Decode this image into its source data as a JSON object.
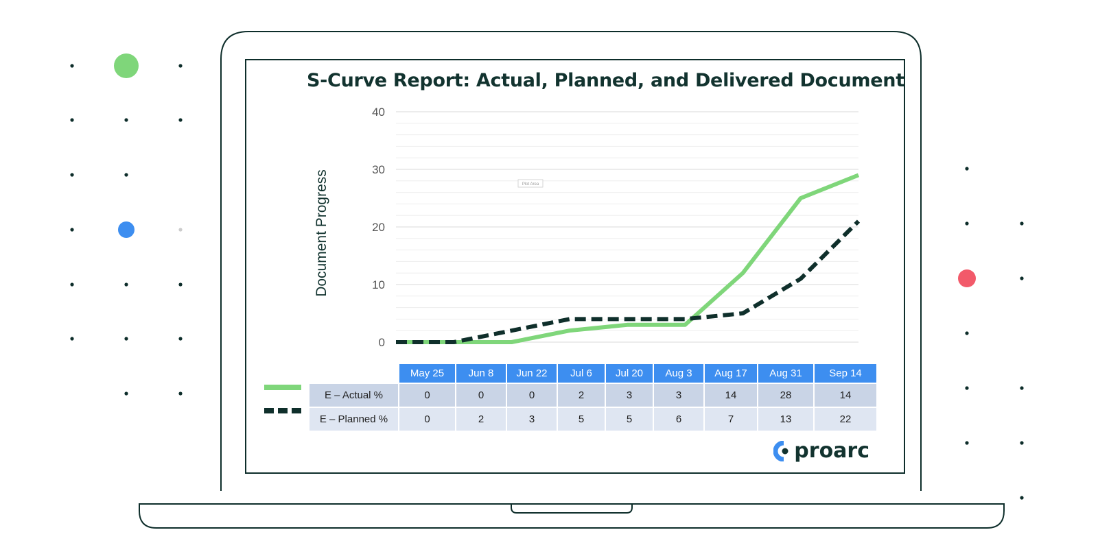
{
  "chart_data": {
    "type": "line",
    "title": "S-Curve Report: Actual, Planned, and Delivered Documents",
    "ylabel": "Document Progress",
    "xlabel": "",
    "ylim": [
      0,
      40
    ],
    "yticks": [
      0,
      10,
      20,
      30,
      40
    ],
    "grid": true,
    "categories": [
      "May 25",
      "Jun 8",
      "Jun 22",
      "Jul 6",
      "Jul 20",
      "Aug 3",
      "Aug 17",
      "Aug 31",
      "Sep 14"
    ],
    "series": [
      {
        "name": "E – Actual %",
        "color": "#7fd67a",
        "style": "solid",
        "values": [
          0,
          0,
          0,
          2,
          3,
          3,
          12,
          25,
          29
        ],
        "table_values": [
          "0",
          "0",
          "0",
          "2",
          "3",
          "3",
          "14",
          "28",
          "14"
        ]
      },
      {
        "name": "E – Planned %",
        "color": "#0f2f2b",
        "style": "dashed",
        "values": [
          0,
          0,
          2,
          4,
          4,
          4,
          5,
          11,
          21
        ],
        "table_values": [
          "0",
          "2",
          "3",
          "5",
          "5",
          "6",
          "7",
          "13",
          "22"
        ]
      }
    ]
  },
  "plot_area_label": "Plot Area",
  "logo": {
    "text": "proarc",
    "color": "#3d8ef0"
  },
  "decor_colors": {
    "green": "#7fd67a",
    "blue": "#3d8ef0",
    "red": "#f25a6a",
    "dark": "#0d2d2a"
  }
}
